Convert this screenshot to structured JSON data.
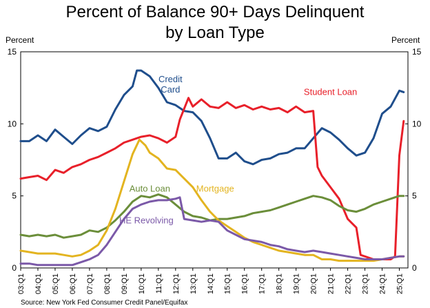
{
  "chart_data": {
    "type": "line",
    "title_line1": "Percent of Balance 90+ Days Delinquent",
    "title_line2": "by Loan Type",
    "ylabel_left": "Percent",
    "ylabel_right": "Percent",
    "ylim": [
      0,
      15
    ],
    "yticks": [
      0,
      5,
      10,
      15
    ],
    "grid": false,
    "x_ticks": [
      "03:Q1",
      "04:Q1",
      "05:Q1",
      "06:Q1",
      "07:Q1",
      "08:Q1",
      "09:Q1",
      "10:Q1",
      "11:Q1",
      "12:Q1",
      "13:Q1",
      "14:Q1",
      "15:Q1",
      "16:Q1",
      "17:Q1",
      "18:Q1",
      "19:Q1",
      "20:Q1",
      "21:Q1",
      "22:Q1",
      "23:Q1",
      "24:Q1",
      "25:Q1"
    ],
    "x_range_years": [
      2003.0,
      2025.5
    ],
    "source": "Source: New York Fed Consumer Credit Panel/Equifax",
    "series": [
      {
        "name": "Credit Card",
        "label_lines": [
          "Credit",
          "Card"
        ],
        "color": "#1f4e8c",
        "points": [
          [
            2003.0,
            8.8
          ],
          [
            2003.5,
            8.8
          ],
          [
            2004.0,
            9.2
          ],
          [
            2004.5,
            8.8
          ],
          [
            2005.0,
            9.6
          ],
          [
            2005.5,
            9.1
          ],
          [
            2006.0,
            8.6
          ],
          [
            2006.5,
            9.2
          ],
          [
            2007.0,
            9.7
          ],
          [
            2007.5,
            9.5
          ],
          [
            2008.0,
            9.8
          ],
          [
            2008.5,
            11.0
          ],
          [
            2009.0,
            12.0
          ],
          [
            2009.5,
            12.6
          ],
          [
            2009.75,
            13.7
          ],
          [
            2010.0,
            13.7
          ],
          [
            2010.5,
            13.3
          ],
          [
            2011.0,
            12.5
          ],
          [
            2011.5,
            11.5
          ],
          [
            2012.0,
            11.3
          ],
          [
            2012.5,
            10.9
          ],
          [
            2013.0,
            10.8
          ],
          [
            2013.5,
            10.2
          ],
          [
            2014.0,
            9.0
          ],
          [
            2014.5,
            7.6
          ],
          [
            2015.0,
            7.6
          ],
          [
            2015.5,
            8.0
          ],
          [
            2016.0,
            7.4
          ],
          [
            2016.5,
            7.2
          ],
          [
            2017.0,
            7.5
          ],
          [
            2017.5,
            7.6
          ],
          [
            2018.0,
            7.9
          ],
          [
            2018.5,
            8.0
          ],
          [
            2019.0,
            8.3
          ],
          [
            2019.5,
            8.3
          ],
          [
            2020.0,
            9.0
          ],
          [
            2020.5,
            9.7
          ],
          [
            2021.0,
            9.4
          ],
          [
            2021.5,
            8.9
          ],
          [
            2022.0,
            8.3
          ],
          [
            2022.5,
            7.8
          ],
          [
            2023.0,
            8.0
          ],
          [
            2023.5,
            9.0
          ],
          [
            2024.0,
            10.7
          ],
          [
            2024.5,
            11.2
          ],
          [
            2025.0,
            12.3
          ],
          [
            2025.25,
            12.2
          ]
        ]
      },
      {
        "name": "Student Loan",
        "label_lines": [
          "Student Loan"
        ],
        "color": "#e8202a",
        "points": [
          [
            2003.0,
            6.2
          ],
          [
            2003.5,
            6.3
          ],
          [
            2004.0,
            6.4
          ],
          [
            2004.5,
            6.1
          ],
          [
            2005.0,
            6.8
          ],
          [
            2005.5,
            6.6
          ],
          [
            2006.0,
            7.0
          ],
          [
            2006.5,
            7.2
          ],
          [
            2007.0,
            7.5
          ],
          [
            2007.5,
            7.7
          ],
          [
            2008.0,
            8.0
          ],
          [
            2008.5,
            8.3
          ],
          [
            2009.0,
            8.7
          ],
          [
            2009.5,
            8.9
          ],
          [
            2010.0,
            9.1
          ],
          [
            2010.5,
            9.2
          ],
          [
            2011.0,
            9.0
          ],
          [
            2011.5,
            8.7
          ],
          [
            2012.0,
            9.1
          ],
          [
            2012.25,
            10.3
          ],
          [
            2012.75,
            11.8
          ],
          [
            2013.0,
            11.2
          ],
          [
            2013.5,
            11.7
          ],
          [
            2014.0,
            11.2
          ],
          [
            2014.5,
            11.1
          ],
          [
            2015.0,
            11.5
          ],
          [
            2015.5,
            11.1
          ],
          [
            2016.0,
            11.3
          ],
          [
            2016.5,
            11.0
          ],
          [
            2017.0,
            11.2
          ],
          [
            2017.5,
            11.0
          ],
          [
            2018.0,
            11.1
          ],
          [
            2018.5,
            10.8
          ],
          [
            2019.0,
            11.2
          ],
          [
            2019.5,
            10.8
          ],
          [
            2020.0,
            10.9
          ],
          [
            2020.25,
            7.0
          ],
          [
            2020.5,
            6.4
          ],
          [
            2021.0,
            5.6
          ],
          [
            2021.5,
            4.8
          ],
          [
            2022.0,
            3.4
          ],
          [
            2022.5,
            2.8
          ],
          [
            2022.75,
            0.9
          ],
          [
            2023.0,
            0.8
          ],
          [
            2023.5,
            0.6
          ],
          [
            2024.0,
            0.6
          ],
          [
            2024.5,
            0.6
          ],
          [
            2024.75,
            0.8
          ],
          [
            2025.0,
            7.8
          ],
          [
            2025.25,
            10.2
          ]
        ]
      },
      {
        "name": "Auto Loan",
        "label_lines": [
          "Auto Loan"
        ],
        "color": "#6b8e3a",
        "points": [
          [
            2003.0,
            2.3
          ],
          [
            2003.5,
            2.2
          ],
          [
            2004.0,
            2.3
          ],
          [
            2004.5,
            2.2
          ],
          [
            2005.0,
            2.3
          ],
          [
            2005.5,
            2.1
          ],
          [
            2006.0,
            2.2
          ],
          [
            2006.5,
            2.3
          ],
          [
            2007.0,
            2.6
          ],
          [
            2007.5,
            2.5
          ],
          [
            2008.0,
            2.8
          ],
          [
            2008.5,
            3.3
          ],
          [
            2009.0,
            3.9
          ],
          [
            2009.5,
            4.6
          ],
          [
            2010.0,
            5.0
          ],
          [
            2010.5,
            4.9
          ],
          [
            2011.0,
            5.1
          ],
          [
            2011.5,
            4.9
          ],
          [
            2012.0,
            4.4
          ],
          [
            2012.5,
            3.9
          ],
          [
            2013.0,
            3.6
          ],
          [
            2013.5,
            3.5
          ],
          [
            2014.0,
            3.3
          ],
          [
            2014.5,
            3.4
          ],
          [
            2015.0,
            3.4
          ],
          [
            2015.5,
            3.5
          ],
          [
            2016.0,
            3.6
          ],
          [
            2016.5,
            3.8
          ],
          [
            2017.0,
            3.9
          ],
          [
            2017.5,
            4.0
          ],
          [
            2018.0,
            4.2
          ],
          [
            2018.5,
            4.4
          ],
          [
            2019.0,
            4.6
          ],
          [
            2019.5,
            4.8
          ],
          [
            2020.0,
            5.0
          ],
          [
            2020.5,
            4.9
          ],
          [
            2021.0,
            4.7
          ],
          [
            2021.5,
            4.3
          ],
          [
            2022.0,
            4.0
          ],
          [
            2022.5,
            3.9
          ],
          [
            2023.0,
            4.1
          ],
          [
            2023.5,
            4.4
          ],
          [
            2024.0,
            4.6
          ],
          [
            2024.5,
            4.8
          ],
          [
            2025.0,
            5.0
          ],
          [
            2025.25,
            5.0
          ]
        ]
      },
      {
        "name": "Mortgage",
        "label_lines": [
          "Mortgage"
        ],
        "color": "#e3b420",
        "points": [
          [
            2003.0,
            1.2
          ],
          [
            2003.5,
            1.1
          ],
          [
            2004.0,
            1.0
          ],
          [
            2004.5,
            1.0
          ],
          [
            2005.0,
            1.0
          ],
          [
            2005.5,
            0.9
          ],
          [
            2006.0,
            0.8
          ],
          [
            2006.5,
            0.9
          ],
          [
            2007.0,
            1.2
          ],
          [
            2007.5,
            1.6
          ],
          [
            2008.0,
            2.6
          ],
          [
            2008.5,
            4.1
          ],
          [
            2009.0,
            6.0
          ],
          [
            2009.5,
            7.9
          ],
          [
            2009.9,
            8.9
          ],
          [
            2010.25,
            8.5
          ],
          [
            2010.5,
            8.0
          ],
          [
            2011.0,
            7.6
          ],
          [
            2011.5,
            6.9
          ],
          [
            2012.0,
            6.8
          ],
          [
            2012.5,
            6.2
          ],
          [
            2013.0,
            5.6
          ],
          [
            2013.5,
            4.7
          ],
          [
            2014.0,
            3.9
          ],
          [
            2014.5,
            3.3
          ],
          [
            2015.0,
            2.9
          ],
          [
            2015.5,
            2.5
          ],
          [
            2016.0,
            2.1
          ],
          [
            2016.5,
            1.8
          ],
          [
            2017.0,
            1.6
          ],
          [
            2017.5,
            1.4
          ],
          [
            2018.0,
            1.2
          ],
          [
            2018.5,
            1.1
          ],
          [
            2019.0,
            1.0
          ],
          [
            2019.5,
            0.9
          ],
          [
            2020.0,
            0.9
          ],
          [
            2020.5,
            0.6
          ],
          [
            2021.0,
            0.6
          ],
          [
            2021.5,
            0.5
          ],
          [
            2022.0,
            0.5
          ],
          [
            2022.5,
            0.5
          ],
          [
            2023.0,
            0.5
          ],
          [
            2023.5,
            0.5
          ],
          [
            2024.0,
            0.6
          ],
          [
            2024.5,
            0.7
          ],
          [
            2025.0,
            0.8
          ],
          [
            2025.25,
            0.8
          ]
        ]
      },
      {
        "name": "HE Revolving",
        "label_lines": [
          "HE Revolving"
        ],
        "color": "#7b59a8",
        "points": [
          [
            2003.0,
            0.3
          ],
          [
            2003.5,
            0.3
          ],
          [
            2004.0,
            0.2
          ],
          [
            2004.5,
            0.2
          ],
          [
            2005.0,
            0.2
          ],
          [
            2005.5,
            0.2
          ],
          [
            2006.0,
            0.2
          ],
          [
            2006.5,
            0.4
          ],
          [
            2007.0,
            0.6
          ],
          [
            2007.5,
            0.9
          ],
          [
            2008.0,
            1.6
          ],
          [
            2008.5,
            2.5
          ],
          [
            2009.0,
            3.4
          ],
          [
            2009.5,
            4.1
          ],
          [
            2010.0,
            4.4
          ],
          [
            2010.5,
            4.6
          ],
          [
            2011.0,
            4.7
          ],
          [
            2011.5,
            4.7
          ],
          [
            2012.0,
            4.8
          ],
          [
            2012.25,
            4.9
          ],
          [
            2012.5,
            3.4
          ],
          [
            2013.0,
            3.3
          ],
          [
            2013.5,
            3.2
          ],
          [
            2014.0,
            3.3
          ],
          [
            2014.5,
            3.2
          ],
          [
            2015.0,
            2.6
          ],
          [
            2015.5,
            2.3
          ],
          [
            2016.0,
            2.0
          ],
          [
            2016.5,
            1.9
          ],
          [
            2017.0,
            1.8
          ],
          [
            2017.5,
            1.6
          ],
          [
            2018.0,
            1.5
          ],
          [
            2018.5,
            1.3
          ],
          [
            2019.0,
            1.2
          ],
          [
            2019.5,
            1.1
          ],
          [
            2020.0,
            1.2
          ],
          [
            2020.5,
            1.1
          ],
          [
            2021.0,
            1.0
          ],
          [
            2021.5,
            0.9
          ],
          [
            2022.0,
            0.8
          ],
          [
            2022.5,
            0.7
          ],
          [
            2023.0,
            0.6
          ],
          [
            2023.5,
            0.6
          ],
          [
            2024.0,
            0.6
          ],
          [
            2024.5,
            0.7
          ],
          [
            2025.0,
            0.8
          ],
          [
            2025.25,
            0.8
          ]
        ]
      }
    ]
  }
}
